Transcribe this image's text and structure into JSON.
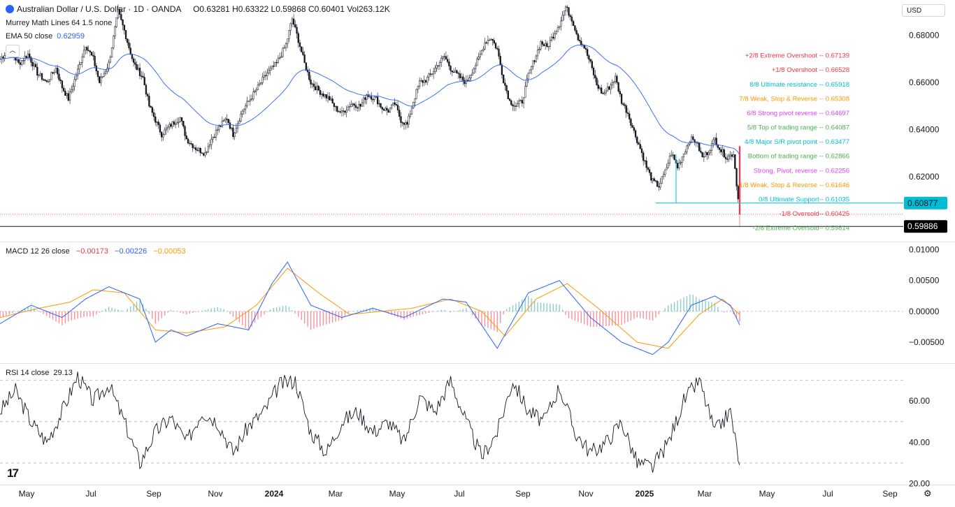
{
  "header": {
    "symbol": "Australian Dollar / U.S. Dollar · 1D · OANDA",
    "open": "O0.63281",
    "high": "H0.63322",
    "low": "L0.59868",
    "close": "C0.60401",
    "vol": "Vol263.12K",
    "indicator1": "Murrey Math Lines 64 1.5 none",
    "ema_label": "EMA 50 close",
    "ema_value": "0.62959",
    "currency": "USD"
  },
  "macd_legend": {
    "label": "MACD 12 26 close",
    "v1": "−0.00173",
    "v2": "−0.00226",
    "v3": "−0.00053"
  },
  "rsi_legend": {
    "label": "RSI 14 close",
    "value": "29.13"
  },
  "colors": {
    "up": "#26a69a",
    "down": "#f23645",
    "candle": "#131722",
    "ema": "#2962ff",
    "macd": "#2962ff",
    "signal": "#ff9800"
  },
  "chart_data": [
    {
      "type": "candlestick",
      "ylim": [
        0.5924,
        0.695
      ],
      "yticks": [
        "0.68000",
        "0.66000",
        "0.64000",
        "0.62000"
      ],
      "ytick_values": [
        0.68,
        0.66,
        0.64,
        0.62
      ],
      "price_badges": [
        {
          "label": "0.60877",
          "value": 0.60877,
          "color": "#00bcd4"
        },
        {
          "label": "0.59886",
          "value": 0.59886,
          "color": "#000000"
        }
      ],
      "close_path": [
        [
          0,
          0.67
        ],
        [
          6,
          0.674
        ],
        [
          12,
          0.668
        ],
        [
          18,
          0.672
        ],
        [
          24,
          0.664
        ],
        [
          30,
          0.66
        ],
        [
          36,
          0.666
        ],
        [
          40,
          0.658
        ],
        [
          44,
          0.653
        ],
        [
          50,
          0.665
        ],
        [
          55,
          0.676
        ],
        [
          60,
          0.67
        ],
        [
          64,
          0.66
        ],
        [
          70,
          0.668
        ],
        [
          76,
          0.69
        ],
        [
          80,
          0.682
        ],
        [
          86,
          0.668
        ],
        [
          92,
          0.662
        ],
        [
          96,
          0.65
        ],
        [
          100,
          0.644
        ],
        [
          104,
          0.638
        ],
        [
          110,
          0.642
        ],
        [
          116,
          0.645
        ],
        [
          120,
          0.636
        ],
        [
          126,
          0.632
        ],
        [
          132,
          0.63
        ],
        [
          136,
          0.636
        ],
        [
          140,
          0.64
        ],
        [
          146,
          0.645
        ],
        [
          150,
          0.638
        ],
        [
          156,
          0.648
        ],
        [
          160,
          0.652
        ],
        [
          166,
          0.658
        ],
        [
          172,
          0.664
        ],
        [
          178,
          0.668
        ],
        [
          184,
          0.676
        ],
        [
          188,
          0.687
        ],
        [
          192,
          0.678
        ],
        [
          196,
          0.668
        ],
        [
          200,
          0.66
        ],
        [
          206,
          0.656
        ],
        [
          212,
          0.653
        ],
        [
          216,
          0.649
        ],
        [
          220,
          0.647
        ],
        [
          226,
          0.651
        ],
        [
          232,
          0.65
        ],
        [
          236,
          0.655
        ],
        [
          242,
          0.653
        ],
        [
          246,
          0.649
        ],
        [
          250,
          0.648
        ],
        [
          254,
          0.651
        ],
        [
          258,
          0.644
        ],
        [
          262,
          0.642
        ],
        [
          266,
          0.652
        ],
        [
          270,
          0.66
        ],
        [
          274,
          0.661
        ],
        [
          278,
          0.664
        ],
        [
          282,
          0.668
        ],
        [
          286,
          0.671
        ],
        [
          290,
          0.666
        ],
        [
          296,
          0.662
        ],
        [
          300,
          0.66
        ],
        [
          304,
          0.665
        ],
        [
          308,
          0.67
        ],
        [
          312,
          0.677
        ],
        [
          316,
          0.679
        ],
        [
          320,
          0.674
        ],
        [
          324,
          0.661
        ],
        [
          328,
          0.652
        ],
        [
          332,
          0.65
        ],
        [
          336,
          0.652
        ],
        [
          340,
          0.663
        ],
        [
          344,
          0.67
        ],
        [
          348,
          0.677
        ],
        [
          352,
          0.675
        ],
        [
          356,
          0.68
        ],
        [
          360,
          0.685
        ],
        [
          364,
          0.692
        ],
        [
          368,
          0.687
        ],
        [
          372,
          0.679
        ],
        [
          376,
          0.675
        ],
        [
          380,
          0.668
        ],
        [
          384,
          0.659
        ],
        [
          388,
          0.655
        ],
        [
          392,
          0.658
        ],
        [
          396,
          0.662
        ],
        [
          400,
          0.652
        ],
        [
          404,
          0.647
        ],
        [
          408,
          0.639
        ],
        [
          412,
          0.632
        ],
        [
          416,
          0.624
        ],
        [
          420,
          0.618
        ],
        [
          424,
          0.616
        ],
        [
          428,
          0.622
        ],
        [
          432,
          0.63
        ],
        [
          436,
          0.624
        ],
        [
          440,
          0.63
        ],
        [
          444,
          0.636
        ],
        [
          448,
          0.635
        ],
        [
          452,
          0.628
        ],
        [
          456,
          0.631
        ],
        [
          460,
          0.636
        ],
        [
          464,
          0.631
        ],
        [
          468,
          0.628
        ],
        [
          472,
          0.63
        ],
        [
          476,
          0.604
        ]
      ],
      "murrey_lines": [
        {
          "label": "+2/8 Extreme Overshoot --",
          "value": "0.67139",
          "level": 0.67139,
          "color": "#f23645"
        },
        {
          "label": "+1/8 Overshoot --",
          "value": "0.66528",
          "level": 0.66528,
          "color": "#f23645"
        },
        {
          "label": "8/8 Ultimate resistance --",
          "value": "0.65918",
          "level": 0.65918,
          "color": "#00bcd4"
        },
        {
          "label": "7/8 Weak, Stop & Reverse --",
          "value": "0.65308",
          "level": 0.65308,
          "color": "#ff9800"
        },
        {
          "label": "6/8 Strong pivot reverse --",
          "value": "0.64697",
          "level": 0.64697,
          "color": "#e040fb"
        },
        {
          "label": "5/8 Top of trading range --",
          "value": "0.64087",
          "level": 0.64087,
          "color": "#4caf50"
        },
        {
          "label": "4/8 Major S/R pivot point --",
          "value": "0.63477",
          "level": 0.63477,
          "color": "#00bcd4"
        },
        {
          "label": "Bottom of trading range --",
          "value": "0.62866",
          "level": 0.62866,
          "color": "#4caf50"
        },
        {
          "label": "Strong, Pivot, reverse --",
          "value": "0.62256",
          "level": 0.62256,
          "color": "#e040fb"
        },
        {
          "label": "1/8 Weak, Stop & Reverse --",
          "value": "0.61646",
          "level": 0.61646,
          "color": "#ff9800"
        },
        {
          "label": "0/8 Ultimate Support--",
          "value": "0.61035",
          "level": 0.61035,
          "color": "#00bcd4"
        },
        {
          "label": "-1/8 Oversold--",
          "value": "0.60425",
          "level": 0.60425,
          "color": "#f23645"
        },
        {
          "label": "-2/8 Extreme Oversold--",
          "value": "0.59814",
          "level": 0.59814,
          "color": "#4caf50"
        }
      ]
    },
    {
      "type": "line",
      "ylim": [
        -0.0084,
        0.0112
      ],
      "yticks": [
        "0.01000",
        "0.00500",
        "0.00000",
        "−0.00500"
      ],
      "ytick_values": [
        0.01,
        0.005,
        0.0,
        -0.005
      ],
      "macd": [
        [
          0,
          -0.002
        ],
        [
          20,
          0.001
        ],
        [
          40,
          -0.001
        ],
        [
          55,
          0.002
        ],
        [
          70,
          0.004
        ],
        [
          90,
          0.002
        ],
        [
          100,
          -0.005
        ],
        [
          110,
          -0.003
        ],
        [
          120,
          -0.004
        ],
        [
          140,
          -0.002
        ],
        [
          160,
          -0.003
        ],
        [
          175,
          0.0045
        ],
        [
          185,
          0.008
        ],
        [
          200,
          0.001
        ],
        [
          220,
          -0.001
        ],
        [
          240,
          0.0005
        ],
        [
          260,
          -0.001
        ],
        [
          285,
          0.002
        ],
        [
          300,
          0.0015
        ],
        [
          320,
          -0.006
        ],
        [
          340,
          0.003
        ],
        [
          360,
          0.005
        ],
        [
          380,
          -0.001
        ],
        [
          400,
          -0.005
        ],
        [
          420,
          -0.007
        ],
        [
          430,
          -0.005
        ],
        [
          445,
          0.001
        ],
        [
          460,
          0.0025
        ],
        [
          470,
          0.001
        ],
        [
          476,
          -0.0022
        ]
      ],
      "signal": [
        [
          0,
          -0.001
        ],
        [
          25,
          0.0005
        ],
        [
          45,
          0.0015
        ],
        [
          60,
          0.0035
        ],
        [
          80,
          0.003
        ],
        [
          100,
          -0.003
        ],
        [
          120,
          -0.0035
        ],
        [
          145,
          -0.0025
        ],
        [
          165,
          0.001
        ],
        [
          185,
          0.007
        ],
        [
          205,
          0.003
        ],
        [
          225,
          -0.0005
        ],
        [
          245,
          0.0
        ],
        [
          265,
          0.0005
        ],
        [
          290,
          0.002
        ],
        [
          310,
          0.0
        ],
        [
          325,
          -0.004
        ],
        [
          345,
          0.002
        ],
        [
          365,
          0.0045
        ],
        [
          385,
          0.0005
        ],
        [
          410,
          -0.005
        ],
        [
          430,
          -0.006
        ],
        [
          450,
          -0.0005
        ],
        [
          465,
          0.002
        ],
        [
          476,
          -0.0005
        ]
      ]
    },
    {
      "type": "line",
      "ylim": [
        19.5,
        78
      ],
      "yticks": [
        "60.00",
        "40.00",
        "20.00"
      ],
      "ytick_values": [
        60,
        40,
        20
      ],
      "bands": [
        70,
        50,
        30
      ],
      "rsi": [
        [
          0,
          55
        ],
        [
          10,
          65
        ],
        [
          20,
          50
        ],
        [
          30,
          40
        ],
        [
          40,
          55
        ],
        [
          50,
          72
        ],
        [
          60,
          60
        ],
        [
          70,
          68
        ],
        [
          80,
          50
        ],
        [
          90,
          30
        ],
        [
          100,
          45
        ],
        [
          110,
          52
        ],
        [
          120,
          40
        ],
        [
          130,
          55
        ],
        [
          140,
          50
        ],
        [
          150,
          35
        ],
        [
          160,
          48
        ],
        [
          170,
          55
        ],
        [
          180,
          68
        ],
        [
          190,
          70
        ],
        [
          200,
          45
        ],
        [
          210,
          35
        ],
        [
          220,
          50
        ],
        [
          230,
          55
        ],
        [
          240,
          45
        ],
        [
          250,
          50
        ],
        [
          260,
          40
        ],
        [
          270,
          62
        ],
        [
          280,
          55
        ],
        [
          290,
          70
        ],
        [
          300,
          50
        ],
        [
          310,
          33
        ],
        [
          320,
          45
        ],
        [
          330,
          70
        ],
        [
          340,
          55
        ],
        [
          350,
          50
        ],
        [
          360,
          67
        ],
        [
          370,
          45
        ],
        [
          380,
          35
        ],
        [
          390,
          40
        ],
        [
          400,
          50
        ],
        [
          410,
          30
        ],
        [
          420,
          28
        ],
        [
          430,
          40
        ],
        [
          440,
          60
        ],
        [
          450,
          70
        ],
        [
          460,
          45
        ],
        [
          470,
          55
        ],
        [
          476,
          29
        ]
      ]
    }
  ],
  "xaxis": {
    "labels": [
      "May",
      "Jul",
      "Sep",
      "Nov",
      "2024",
      "Mar",
      "May",
      "Jul",
      "Sep",
      "Nov",
      "2025",
      "Mar",
      "May",
      "Jul",
      "Sep"
    ],
    "bold": [
      false,
      false,
      false,
      false,
      true,
      false,
      false,
      false,
      false,
      false,
      true,
      false,
      false,
      false,
      false
    ]
  }
}
